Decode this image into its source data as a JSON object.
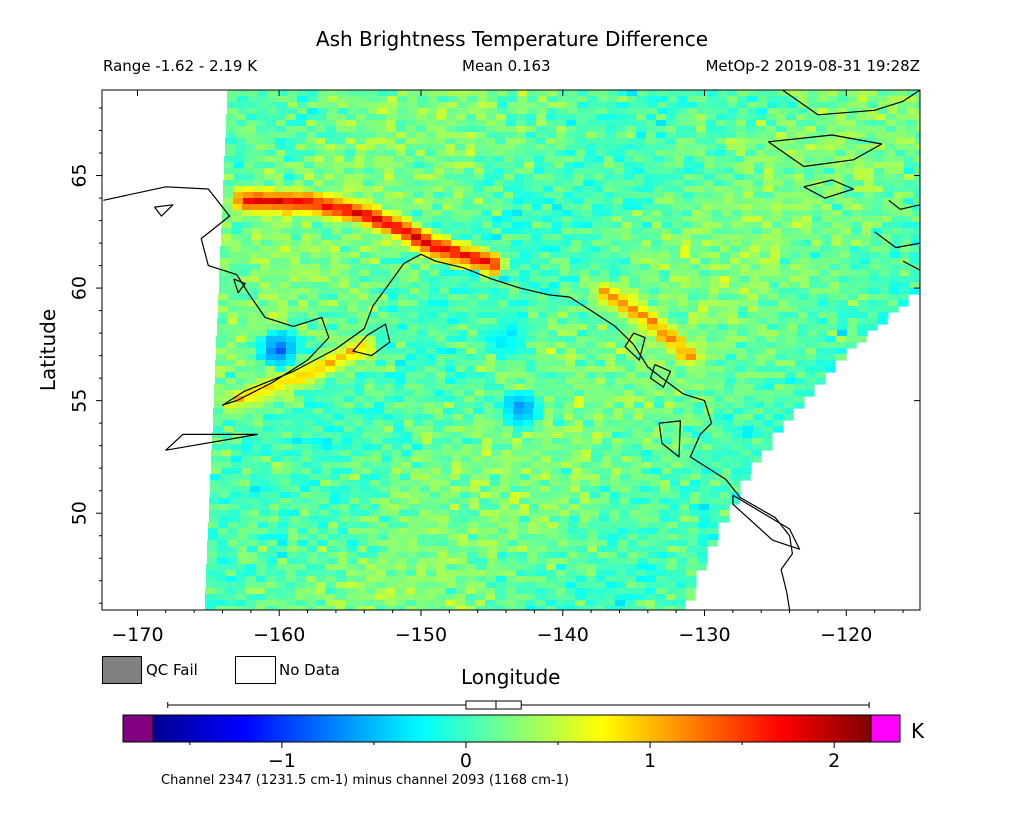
{
  "chart_data": {
    "type": "heatmap",
    "title": "Ash Brightness Temperature Difference",
    "range_text": "Range -1.62 - 2.19 K",
    "mean_text": "Mean 0.163",
    "satellite_time_text": "MetOp-2 2019-08-31 19:28Z",
    "xlabel": "Longitude",
    "ylabel": "Latitude",
    "xlim": [
      -172.5,
      -114.8
    ],
    "ylim": [
      45.7,
      68.8
    ],
    "x_ticks": [
      -170,
      -160,
      -150,
      -140,
      -130,
      -120
    ],
    "x_tick_labels": [
      "−170",
      "−160",
      "−150",
      "−140",
      "−130",
      "−120"
    ],
    "y_ticks": [
      50,
      55,
      60,
      65
    ],
    "y_tick_labels": [
      "50",
      "55",
      "60",
      "65"
    ],
    "legend": [
      {
        "label": "QC Fail",
        "color": "#808080"
      },
      {
        "label": "No Data",
        "color": "#ffffff"
      }
    ],
    "colorbar": {
      "unit": "K",
      "range": [
        -1.7,
        2.2
      ],
      "ticks": [
        -1,
        0,
        1,
        2
      ],
      "tick_labels": [
        "−1",
        "0",
        "1",
        "2"
      ],
      "under_color": "#800080",
      "over_color": "#ff00ff",
      "stats_box": {
        "min": -1.62,
        "q1": 0.0,
        "median": 0.163,
        "q3": 0.3,
        "max": 2.19
      }
    },
    "annotation": "Channel 2347 (1231.5 cm-1) minus channel 2093 (1168 cm-1)",
    "swath_background_value": 0.15,
    "ash_streaks": [
      {
        "points": [
          [
            -162.5,
            63.9
          ],
          [
            -158,
            63.8
          ],
          [
            -154,
            63.3
          ],
          [
            -151,
            62.5
          ],
          [
            -149,
            61.8
          ],
          [
            -145,
            61.1
          ]
        ],
        "value": 1.8
      },
      {
        "points": [
          [
            -137,
            59.8
          ],
          [
            -134,
            58.6
          ],
          [
            -131,
            57.0
          ]
        ],
        "value": 1.2
      },
      {
        "points": [
          [
            -163,
            55.0
          ],
          [
            -158,
            56.2
          ],
          [
            -154,
            57.4
          ]
        ],
        "value": 0.95
      }
    ],
    "cold_spots": [
      {
        "lon": -143,
        "lat": 54.6,
        "value": -0.7
      },
      {
        "lon": -144,
        "lat": 57.7,
        "value": -0.4
      },
      {
        "lon": -160,
        "lat": 57.3,
        "value": -0.9
      }
    ]
  }
}
